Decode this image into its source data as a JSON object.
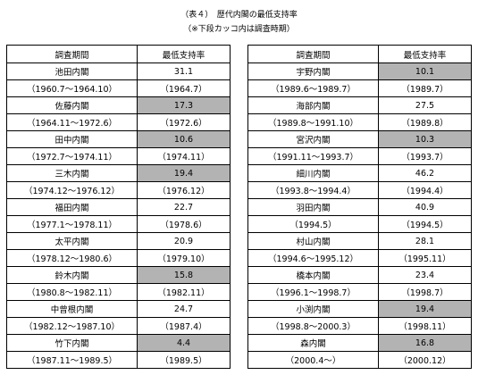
{
  "title": "（表４）　歴代内閣の最低支持率",
  "note": "（※下段カッコ内は調査時期）",
  "headers": {
    "period": "調査期間",
    "rate": "最低支持率"
  },
  "left": [
    {
      "name": "池田内閣",
      "rate": "31.1",
      "period": "（1960.7～1964.10）",
      "date": "（1964.7）",
      "highlight": false
    },
    {
      "name": "佐藤内閣",
      "rate": "17.3",
      "period": "（1964.11～1972.6）",
      "date": "（1972.6）",
      "highlight": true
    },
    {
      "name": "田中内閣",
      "rate": "10.6",
      "period": "（1972.7～1974.11）",
      "date": "（1974.11）",
      "highlight": true
    },
    {
      "name": "三木内閣",
      "rate": "19.4",
      "period": "（1974.12～1976.12）",
      "date": "（1976.12）",
      "highlight": true
    },
    {
      "name": "福田内閣",
      "rate": "22.7",
      "period": "（1977.1～1978.11）",
      "date": "（1978.6）",
      "highlight": false
    },
    {
      "name": "太平内閣",
      "rate": "20.9",
      "period": "（1978.12～1980.6）",
      "date": "（1979.10）",
      "highlight": false
    },
    {
      "name": "鈴木内閣",
      "rate": "15.8",
      "period": "（1980.8～1982.11）",
      "date": "（1982.11）",
      "highlight": true
    },
    {
      "name": "中曾根内閣",
      "rate": "24.7",
      "period": "（1982.12～1987.10）",
      "date": "（1987.4）",
      "highlight": false
    },
    {
      "name": "竹下内閣",
      "rate": "4.4",
      "period": "（1987.11～1989.5）",
      "date": "（1989.5）",
      "highlight": true
    }
  ],
  "right": [
    {
      "name": "宇野内閣",
      "rate": "10.1",
      "period": "（1989.6～1989.7）",
      "date": "（1989.7）",
      "highlight": true
    },
    {
      "name": "海部内閣",
      "rate": "27.5",
      "period": "（1989.8～1991.10）",
      "date": "（1989.8）",
      "highlight": false
    },
    {
      "name": "宮沢内閣",
      "rate": "10.3",
      "period": "（1991.11～1993.7）",
      "date": "（1993.7）",
      "highlight": true
    },
    {
      "name": "細川内閣",
      "rate": "46.2",
      "period": "（1993.8～1994.4）",
      "date": "（1994.4）",
      "highlight": false
    },
    {
      "name": "羽田内閣",
      "rate": "40.9",
      "period": "（1994.5）",
      "date": "（1994.5）",
      "highlight": false
    },
    {
      "name": "村山内閣",
      "rate": "28.1",
      "period": "（1994.6～1995.12）",
      "date": "（1995.11）",
      "highlight": false
    },
    {
      "name": "橋本内閣",
      "rate": "23.4",
      "period": "（1996.1～1998.7）",
      "date": "（1998.7）",
      "highlight": false
    },
    {
      "name": "小渕内閣",
      "rate": "19.4",
      "period": "（1998.8～2000.3）",
      "date": "（1998.11）",
      "highlight": true
    },
    {
      "name": "森内閣",
      "rate": "16.8",
      "period": "（2000.4～）",
      "date": "（2000.12）",
      "highlight": true
    }
  ],
  "colors": {
    "highlight": "#b3b3b3",
    "border": "#000000"
  }
}
